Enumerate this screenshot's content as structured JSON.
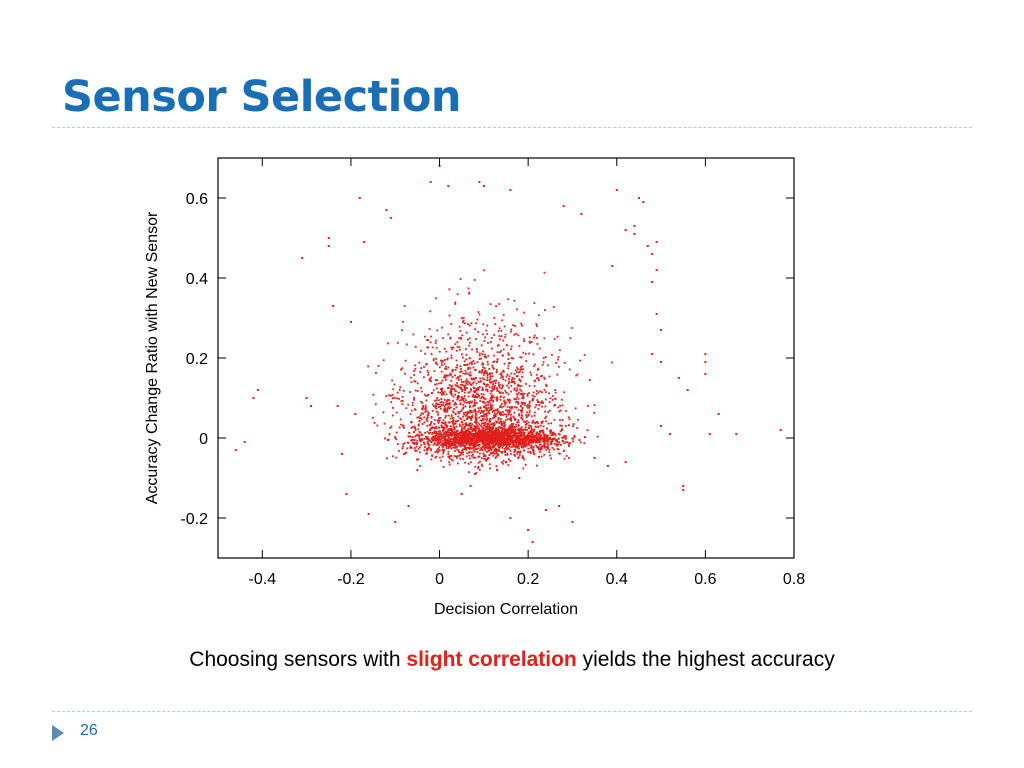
{
  "slide": {
    "title": "Sensor Selection",
    "caption_before": "Choosing sensors with ",
    "caption_highlight": "slight correlation",
    "caption_after": " yields the highest accuracy",
    "page_number": "26"
  },
  "colors": {
    "title": "#1a6eb5",
    "highlight": "#e0201c",
    "points": "#e0201c",
    "rule": "#b8cad9",
    "footer_arrow": "#5b8bb7"
  },
  "icons": {
    "footer_marker": "triangle-right-icon"
  },
  "chart_data": {
    "type": "scatter",
    "title": "",
    "xlabel": "Decision Correlation",
    "ylabel": "Accuracy Change Ratio with New Sensor",
    "xlim": [
      -0.5,
      0.8
    ],
    "ylim": [
      -0.3,
      0.7
    ],
    "xticks": [
      -0.4,
      -0.2,
      0,
      0.2,
      0.4,
      0.6,
      0.8
    ],
    "xtick_labels": [
      "-0.4",
      "-0.2",
      "0",
      "0.2",
      "0.4",
      "0.6",
      "0.8"
    ],
    "yticks": [
      -0.2,
      0,
      0.2,
      0.4,
      0.6
    ],
    "ytick_labels": [
      "-0.2",
      "0",
      "0.2",
      "0.4",
      "0.6"
    ],
    "grid": false,
    "legend": "none",
    "marker_color": "#e0201c",
    "series": [
      {
        "points": [
          [
            -0.46,
            -0.03
          ],
          [
            -0.41,
            0.12
          ],
          [
            -0.42,
            0.1
          ],
          [
            -0.44,
            -0.01
          ],
          [
            -0.31,
            0.45
          ],
          [
            -0.3,
            0.1
          ],
          [
            -0.29,
            0.08
          ],
          [
            -0.25,
            0.5
          ],
          [
            -0.25,
            0.48
          ],
          [
            -0.24,
            0.33
          ],
          [
            -0.23,
            0.08
          ],
          [
            -0.22,
            -0.04
          ],
          [
            -0.21,
            -0.14
          ],
          [
            -0.2,
            0.29
          ],
          [
            -0.19,
            0.06
          ],
          [
            -0.18,
            0.6
          ],
          [
            -0.17,
            0.49
          ],
          [
            -0.16,
            -0.19
          ],
          [
            -0.12,
            0.57
          ],
          [
            -0.11,
            0.55
          ],
          [
            -0.1,
            -0.21
          ],
          [
            -0.07,
            -0.17
          ],
          [
            -0.02,
            0.64
          ],
          [
            0.0,
            0.68
          ],
          [
            0.02,
            0.63
          ],
          [
            0.05,
            -0.14
          ],
          [
            0.07,
            -0.12
          ],
          [
            0.09,
            0.64
          ],
          [
            0.1,
            0.63
          ],
          [
            0.16,
            0.62
          ],
          [
            0.16,
            -0.2
          ],
          [
            0.2,
            -0.23
          ],
          [
            0.21,
            -0.26
          ],
          [
            0.24,
            -0.18
          ],
          [
            0.27,
            -0.17
          ],
          [
            0.3,
            -0.21
          ],
          [
            0.39,
            0.43
          ],
          [
            0.4,
            0.62
          ],
          [
            0.42,
            0.52
          ],
          [
            0.44,
            0.51
          ],
          [
            0.44,
            0.53
          ],
          [
            0.45,
            0.6
          ],
          [
            0.46,
            0.59
          ],
          [
            0.47,
            0.48
          ],
          [
            0.49,
            0.49
          ],
          [
            0.48,
            0.46
          ],
          [
            0.49,
            0.42
          ],
          [
            0.48,
            0.39
          ],
          [
            0.49,
            0.31
          ],
          [
            0.5,
            0.27
          ],
          [
            0.48,
            0.21
          ],
          [
            0.5,
            0.19
          ],
          [
            0.54,
            0.15
          ],
          [
            0.55,
            -0.12
          ],
          [
            0.55,
            -0.13
          ],
          [
            0.56,
            0.12
          ],
          [
            0.6,
            0.19
          ],
          [
            0.6,
            0.16
          ],
          [
            0.6,
            0.21
          ],
          [
            0.61,
            0.01
          ],
          [
            0.63,
            0.06
          ],
          [
            0.67,
            0.01
          ],
          [
            0.77,
            0.02
          ],
          [
            0.35,
            -0.05
          ],
          [
            0.38,
            -0.07
          ],
          [
            0.42,
            -0.06
          ],
          [
            0.5,
            0.03
          ],
          [
            0.52,
            0.01
          ],
          [
            0.32,
            0.56
          ],
          [
            0.28,
            0.58
          ],
          [
            0.11,
            -0.05
          ],
          [
            0.13,
            -0.08
          ],
          [
            0.08,
            -0.09
          ],
          [
            0.15,
            -0.06
          ],
          [
            0.18,
            -0.1
          ],
          [
            -0.05,
            -0.08
          ],
          [
            -0.08,
            -0.04
          ],
          [
            0.03,
            0.05
          ],
          [
            0.01,
            -0.03
          ],
          [
            0.22,
            0.04
          ]
        ]
      }
    ]
  }
}
